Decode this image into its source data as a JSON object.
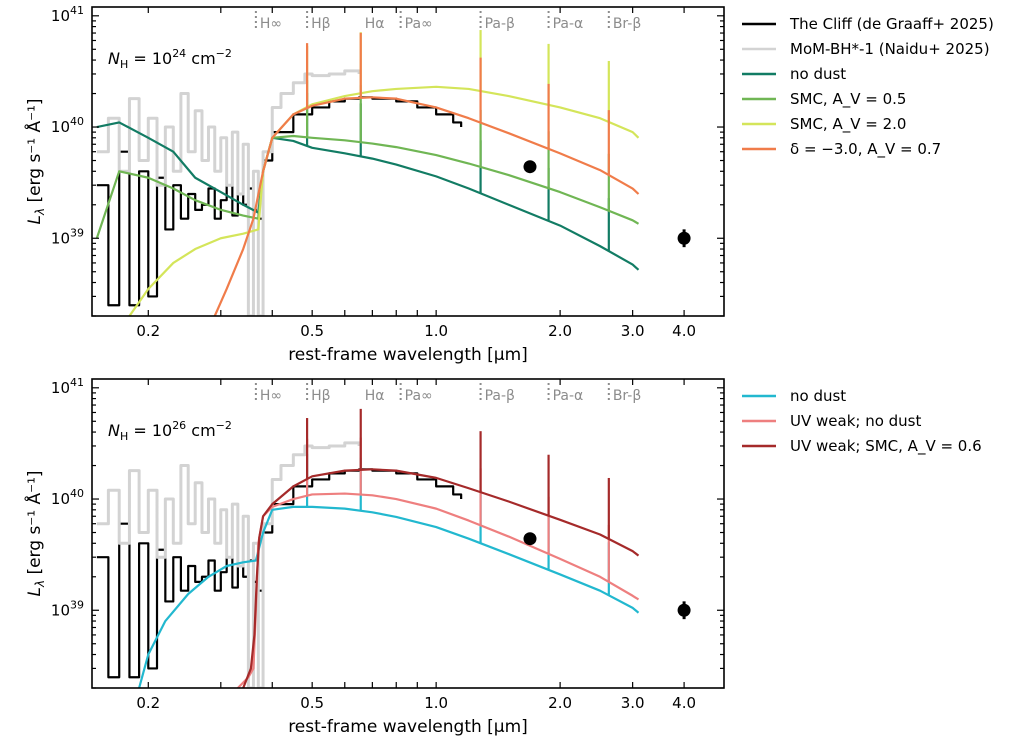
{
  "chart_data": [
    {
      "type": "line",
      "panel": "top",
      "annotation": {
        "prefix": "N",
        "sub": "H",
        "base": " = 10",
        "exp": "24",
        "unit": " cm",
        "unit_exp": "−2"
      },
      "xlabel": "rest-frame wavelength [μm]",
      "ylabel": "L_λ [erg s⁻¹ Å⁻¹]",
      "xscale": "log",
      "yscale": "log",
      "xlim": [
        0.146,
        5.0
      ],
      "ylim": [
        2e+38,
        1.2e+41
      ],
      "xticks": [
        0.2,
        0.5,
        1.0,
        2.0,
        3.0,
        4.0
      ],
      "xtick_labels": [
        "0.2",
        "0.5",
        "1.0",
        "2.0",
        "3.0",
        "4.0"
      ],
      "yticks": [
        1e+39,
        1e+40,
        1e+41
      ],
      "ytick_labels": [
        {
          "base": "10",
          "exp": "39"
        },
        {
          "base": "10",
          "exp": "40"
        },
        {
          "base": "10",
          "exp": "41"
        }
      ],
      "legend_position": "outside-right",
      "series": [
        {
          "name": "The Cliff (de Graaff+ 2025)",
          "color": "#000000",
          "style": "step",
          "x": [
            0.15,
            0.16,
            0.17,
            0.18,
            0.19,
            0.2,
            0.21,
            0.22,
            0.23,
            0.24,
            0.25,
            0.26,
            0.27,
            0.28,
            0.29,
            0.3,
            0.31,
            0.32,
            0.33,
            0.34,
            0.35,
            0.36,
            0.37,
            0.38,
            0.4,
            0.45,
            0.5,
            0.55,
            0.6,
            0.65,
            0.7,
            0.8,
            0.9,
            1.0,
            1.1,
            1.15
          ],
          "y": [
            3e+39,
            2.5e+38,
            6e+39,
            2.5e+38,
            4e+39,
            3e+38,
            3.5e+39,
            1.2e+39,
            3e+39,
            1.5e+39,
            2.5e+39,
            1.8e+39,
            2e+39,
            2.8e+39,
            1.5e+39,
            2.2e+39,
            3e+39,
            1.6e+39,
            2.5e+39,
            2e+39,
            2.8e+39,
            1.8e+39,
            1.5e+39,
            5e+39,
            9e+39,
            1.3e+40,
            1.5e+40,
            1.7e+40,
            1.8e+40,
            1.85e+40,
            1.8e+40,
            1.7e+40,
            1.5e+40,
            1.3e+40,
            1.1e+40,
            1e+40
          ]
        },
        {
          "name": "MoM-BH*-1 (Naidu+ 2025)",
          "color": "#d3d3d3",
          "style": "step",
          "x": [
            0.15,
            0.16,
            0.17,
            0.18,
            0.19,
            0.2,
            0.21,
            0.22,
            0.23,
            0.24,
            0.25,
            0.26,
            0.27,
            0.28,
            0.29,
            0.3,
            0.31,
            0.32,
            0.33,
            0.34,
            0.35,
            0.36,
            0.37,
            0.38,
            0.4,
            0.42,
            0.45,
            0.48,
            0.5,
            0.55,
            0.6,
            0.65
          ],
          "y": [
            6e+39,
            1.2e+40,
            4e+39,
            1.8e+40,
            5e+39,
            1.2e+40,
            3e+39,
            1e+40,
            4e+39,
            2e+40,
            6e+39,
            1.4e+40,
            5e+39,
            1e+40,
            4e+39,
            8e+39,
            3e+39,
            9e+39,
            2.5e+39,
            7e+39,
            2e+38,
            4e+39,
            2e+38,
            6e+39,
            1.5e+40,
            2e+40,
            2.5e+40,
            3e+40,
            2.9e+40,
            3e+40,
            3.2e+40,
            3e+40
          ]
        },
        {
          "name": "no dust",
          "color": "#127c64",
          "style": "line",
          "x": [
            0.15,
            0.17,
            0.2,
            0.23,
            0.26,
            0.3,
            0.34,
            0.37,
            0.38,
            0.4,
            0.45,
            0.5,
            0.6,
            0.7,
            0.8,
            1.0,
            1.2,
            1.5,
            2.0,
            2.5,
            3.0,
            3.1
          ],
          "y": [
            1e+40,
            1.1e+40,
            8e+39,
            6e+39,
            3.5e+39,
            2.6e+39,
            2e+39,
            1.7e+39,
            4e+39,
            8e+39,
            7.5e+39,
            6.5e+39,
            5.8e+39,
            5.2e+39,
            4.6e+39,
            3.6e+39,
            2.8e+39,
            2e+39,
            1.3e+39,
            8.5e+38,
            5.8e+38,
            5.2e+38
          ]
        },
        {
          "name": "SMC, A_V = 0.5",
          "color": "#70b654",
          "style": "line",
          "x": [
            0.15,
            0.17,
            0.2,
            0.23,
            0.26,
            0.3,
            0.34,
            0.37,
            0.38,
            0.4,
            0.45,
            0.5,
            0.6,
            0.7,
            0.8,
            1.0,
            1.2,
            1.5,
            2.0,
            2.5,
            3.0,
            3.1
          ],
          "y": [
            1e+39,
            4e+39,
            3.5e+39,
            2.8e+39,
            2.2e+39,
            1.8e+39,
            1.6e+39,
            1.5e+39,
            4e+39,
            8e+39,
            8.3e+39,
            8e+39,
            7.6e+39,
            7.1e+39,
            6.6e+39,
            5.6e+39,
            4.7e+39,
            3.7e+39,
            2.6e+39,
            1.9e+39,
            1.45e+39,
            1.35e+39
          ]
        },
        {
          "name": "SMC, A_V = 2.0",
          "color": "#d4e55a",
          "style": "line",
          "x": [
            0.18,
            0.2,
            0.23,
            0.26,
            0.3,
            0.34,
            0.37,
            0.38,
            0.4,
            0.45,
            0.5,
            0.6,
            0.7,
            0.8,
            1.0,
            1.2,
            1.5,
            2.0,
            2.5,
            3.0,
            3.1
          ],
          "y": [
            2e+38,
            3.5e+38,
            6e+38,
            8e+38,
            1e+39,
            1.1e+39,
            1.2e+39,
            4e+39,
            8e+39,
            1.3e+40,
            1.6e+40,
            1.9e+40,
            2.1e+40,
            2.2e+40,
            2.3e+40,
            2.2e+40,
            1.9e+40,
            1.5e+40,
            1.2e+40,
            9e+39,
            8e+39
          ]
        },
        {
          "name": "δ = −3.0, A_V = 0.7",
          "color": "#f07c4a",
          "style": "line",
          "x": [
            0.29,
            0.31,
            0.34,
            0.36,
            0.38,
            0.4,
            0.45,
            0.5,
            0.6,
            0.7,
            0.8,
            1.0,
            1.2,
            1.5,
            2.0,
            2.5,
            3.0,
            3.1
          ],
          "y": [
            2e+38,
            3.5e+38,
            8e+38,
            1.5e+39,
            4e+39,
            8e+39,
            1.3e+40,
            1.55e+40,
            1.8e+40,
            1.85e+40,
            1.8e+40,
            1.5e+40,
            1.2e+40,
            8.8e+39,
            5.8e+39,
            4.1e+39,
            2.8e+39,
            2.5e+39
          ]
        }
      ],
      "points": [
        {
          "x": 1.69,
          "y": 4.4e+39,
          "yerr_dex": 0.0
        },
        {
          "x": 4.0,
          "y": 1e+39,
          "yerr_dex": 0.08
        }
      ]
    },
    {
      "type": "line",
      "panel": "bottom",
      "annotation": {
        "prefix": "N",
        "sub": "H",
        "base": " = 10",
        "exp": "26",
        "unit": " cm",
        "unit_exp": "−2"
      },
      "xlabel": "rest-frame wavelength [μm]",
      "ylabel": "L_λ [erg s⁻¹ Å⁻¹]",
      "xscale": "log",
      "yscale": "log",
      "xlim": [
        0.146,
        5.0
      ],
      "ylim": [
        2e+38,
        1.2e+41
      ],
      "xticks": [
        0.2,
        0.5,
        1.0,
        2.0,
        3.0,
        4.0
      ],
      "xtick_labels": [
        "0.2",
        "0.5",
        "1.0",
        "2.0",
        "3.0",
        "4.0"
      ],
      "yticks": [
        1e+39,
        1e+40,
        1e+41
      ],
      "ytick_labels": [
        {
          "base": "10",
          "exp": "39"
        },
        {
          "base": "10",
          "exp": "40"
        },
        {
          "base": "10",
          "exp": "41"
        }
      ],
      "legend_position": "outside-right",
      "series": [
        {
          "name": "The Cliff (de Graaff+ 2025)",
          "color": "#000000",
          "style": "step",
          "in_legend": false,
          "x": [
            0.15,
            0.16,
            0.17,
            0.18,
            0.19,
            0.2,
            0.21,
            0.22,
            0.23,
            0.24,
            0.25,
            0.26,
            0.27,
            0.28,
            0.29,
            0.3,
            0.31,
            0.32,
            0.33,
            0.34,
            0.35,
            0.36,
            0.37,
            0.38,
            0.4,
            0.45,
            0.5,
            0.55,
            0.6,
            0.65,
            0.7,
            0.8,
            0.9,
            1.0,
            1.1,
            1.15
          ],
          "y": [
            3e+39,
            2.5e+38,
            6e+39,
            2.5e+38,
            4e+39,
            3e+38,
            3.5e+39,
            1.2e+39,
            3e+39,
            1.5e+39,
            2.5e+39,
            1.8e+39,
            2e+39,
            2.8e+39,
            1.5e+39,
            2.2e+39,
            3e+39,
            1.6e+39,
            2.5e+39,
            2e+39,
            2.8e+39,
            1.8e+39,
            1.5e+39,
            5e+39,
            9e+39,
            1.3e+40,
            1.5e+40,
            1.7e+40,
            1.8e+40,
            1.85e+40,
            1.8e+40,
            1.7e+40,
            1.5e+40,
            1.3e+40,
            1.1e+40,
            1e+40
          ]
        },
        {
          "name": "MoM-BH*-1 (Naidu+ 2025)",
          "color": "#d3d3d3",
          "style": "step",
          "in_legend": false,
          "x": [
            0.15,
            0.16,
            0.17,
            0.18,
            0.19,
            0.2,
            0.21,
            0.22,
            0.23,
            0.24,
            0.25,
            0.26,
            0.27,
            0.28,
            0.29,
            0.3,
            0.31,
            0.32,
            0.33,
            0.34,
            0.35,
            0.36,
            0.37,
            0.38,
            0.4,
            0.42,
            0.45,
            0.48,
            0.5,
            0.55,
            0.6,
            0.65
          ],
          "y": [
            6e+39,
            1.2e+40,
            4e+39,
            1.8e+40,
            5e+39,
            1.2e+40,
            3e+39,
            1e+40,
            4e+39,
            2e+40,
            6e+39,
            1.4e+40,
            5e+39,
            1e+40,
            4e+39,
            8e+39,
            3e+39,
            9e+39,
            2.5e+39,
            7e+39,
            2e+38,
            4e+39,
            2e+38,
            6e+39,
            1.5e+40,
            2e+40,
            2.5e+40,
            3e+40,
            2.9e+40,
            3e+40,
            3.2e+40,
            3e+40
          ]
        },
        {
          "name": "no dust",
          "color": "#22b8cf",
          "style": "line",
          "in_legend": true,
          "x": [
            0.19,
            0.2,
            0.22,
            0.25,
            0.28,
            0.31,
            0.34,
            0.365,
            0.38,
            0.4,
            0.45,
            0.5,
            0.6,
            0.7,
            0.8,
            1.0,
            1.2,
            1.5,
            2.0,
            2.5,
            3.0,
            3.1
          ],
          "y": [
            2e+38,
            4e+38,
            8e+38,
            1.4e+39,
            2e+39,
            2.5e+39,
            2.7e+39,
            2.8e+39,
            5e+39,
            8e+39,
            8.5e+39,
            8.5e+39,
            8.2e+39,
            7.6e+39,
            6.9e+39,
            5.6e+39,
            4.4e+39,
            3.2e+39,
            2.1e+39,
            1.5e+39,
            1.05e+39,
            9.5e+38
          ]
        },
        {
          "name": "UV weak; no dust",
          "color": "#ee7f7f",
          "style": "line",
          "in_legend": true,
          "x": [
            0.33,
            0.35,
            0.36,
            0.365,
            0.37,
            0.38,
            0.4,
            0.45,
            0.5,
            0.6,
            0.7,
            0.8,
            1.0,
            1.2,
            1.5,
            2.0,
            2.5,
            3.0,
            3.1
          ],
          "y": [
            2e+38,
            2.5e+38,
            3e+38,
            1e+39,
            4e+39,
            7e+39,
            8.5e+39,
            1e+40,
            1.1e+40,
            1.12e+40,
            1.08e+40,
            1e+40,
            8.2e+39,
            6.4e+39,
            4.6e+39,
            2.9e+39,
            2e+39,
            1.35e+39,
            1.25e+39
          ]
        },
        {
          "name": "UV weak; SMC, A_V = 0.6",
          "color": "#a52a2a",
          "style": "line",
          "in_legend": true,
          "x": [
            0.34,
            0.355,
            0.362,
            0.367,
            0.372,
            0.38,
            0.4,
            0.45,
            0.5,
            0.6,
            0.7,
            0.8,
            1.0,
            1.2,
            1.5,
            2.0,
            2.5,
            3.0,
            3.1
          ],
          "y": [
            2e+38,
            3e+38,
            6e+38,
            2e+39,
            4.5e+39,
            7e+39,
            9e+39,
            1.3e+40,
            1.6e+40,
            1.8e+40,
            1.85e+40,
            1.8e+40,
            1.55e+40,
            1.25e+40,
            9.5e+39,
            6.5e+39,
            4.8e+39,
            3.4e+39,
            3.1e+39
          ]
        }
      ],
      "points": [
        {
          "x": 1.69,
          "y": 4.4e+39,
          "yerr_dex": 0.0
        },
        {
          "x": 4.0,
          "y": 1e+39,
          "yerr_dex": 0.08
        }
      ]
    }
  ],
  "emission_lines": [
    {
      "label": "H∞",
      "x": 0.365,
      "dotted": true
    },
    {
      "label": "Hβ",
      "x": 0.486,
      "dotted": true
    },
    {
      "label": "Hα",
      "x": 0.656,
      "dotted": false
    },
    {
      "label": "Pa∞",
      "x": 0.82,
      "dotted": true
    },
    {
      "label": "Pa-β",
      "x": 1.282,
      "dotted": true
    },
    {
      "label": "Pa-α",
      "x": 1.875,
      "dotted": true
    },
    {
      "label": "Br-β",
      "x": 2.626,
      "dotted": true
    }
  ],
  "legends": {
    "top": [
      "The Cliff (de Graaff+ 2025)",
      "MoM-BH*-1 (Naidu+ 2025)",
      "no dust",
      "SMC, A_V = 0.5",
      "SMC, A_V = 2.0",
      "δ = −3.0, A_V = 0.7"
    ],
    "bottom": [
      "no dust",
      "UV weak; no dust",
      "UV weak; SMC, A_V = 0.6"
    ]
  }
}
